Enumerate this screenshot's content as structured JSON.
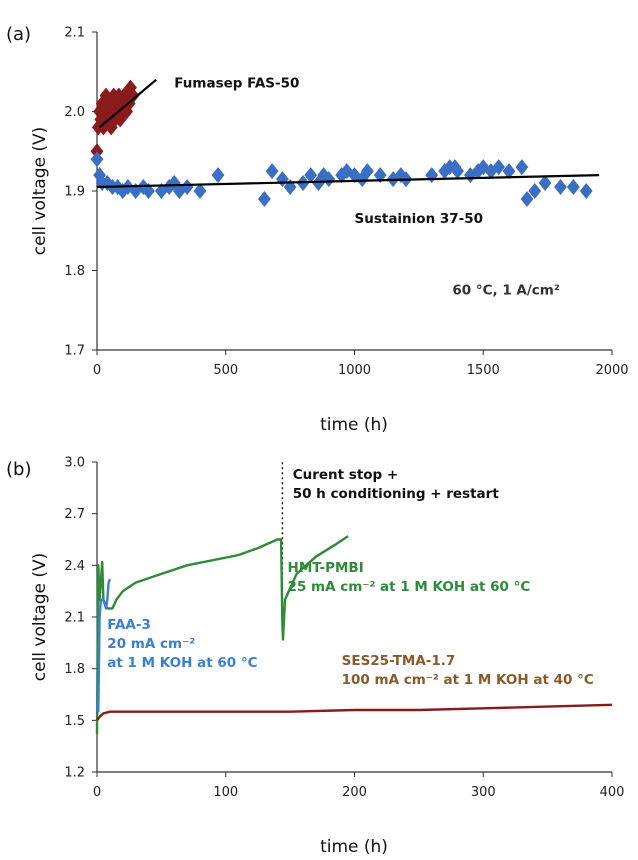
{
  "chart_data": [
    {
      "panel_label": "(a)",
      "type": "scatter",
      "xlabel": "time (h)",
      "ylabel": "cell voltage (V)",
      "xlim": [
        0,
        2000
      ],
      "ylim": [
        1.7,
        2.1
      ],
      "xticks": [
        0,
        500,
        1000,
        1500,
        2000
      ],
      "yticks": [
        1.7,
        1.8,
        1.9,
        2.0,
        2.1
      ],
      "grid": false,
      "colors": {
        "fumasep": "#8b1a1a",
        "sustainion": "#3a6fc4",
        "fit": "#000000"
      },
      "series": [
        {
          "name": "Fumasep FAS-50",
          "marker": "diamond",
          "points": [
            [
              0,
              1.95
            ],
            [
              5,
              1.98
            ],
            [
              10,
              2.0
            ],
            [
              15,
              1.99
            ],
            [
              20,
              2.01
            ],
            [
              25,
              1.98
            ],
            [
              30,
              2.0
            ],
            [
              35,
              2.02
            ],
            [
              40,
              1.99
            ],
            [
              45,
              2.0
            ],
            [
              50,
              2.01
            ],
            [
              55,
              1.98
            ],
            [
              60,
              2.0
            ],
            [
              65,
              2.02
            ],
            [
              70,
              1.99
            ],
            [
              75,
              2.01
            ],
            [
              80,
              2.0
            ],
            [
              85,
              2.02
            ],
            [
              90,
              1.99
            ],
            [
              95,
              2.01
            ],
            [
              100,
              2.0
            ],
            [
              105,
              2.02
            ],
            [
              110,
              2.01
            ],
            [
              115,
              2.0
            ],
            [
              120,
              2.02
            ],
            [
              125,
              2.01
            ],
            [
              130,
              2.03
            ],
            [
              140,
              2.02
            ]
          ],
          "trendline": [
            [
              10,
              1.98
            ],
            [
              230,
              2.04
            ]
          ]
        },
        {
          "name": "Sustainion 37-50",
          "marker": "diamond",
          "points": [
            [
              0,
              1.94
            ],
            [
              10,
              1.92
            ],
            [
              20,
              1.91
            ],
            [
              40,
              1.91
            ],
            [
              60,
              1.905
            ],
            [
              80,
              1.905
            ],
            [
              100,
              1.9
            ],
            [
              120,
              1.905
            ],
            [
              150,
              1.9
            ],
            [
              180,
              1.905
            ],
            [
              200,
              1.9
            ],
            [
              250,
              1.9
            ],
            [
              280,
              1.905
            ],
            [
              300,
              1.91
            ],
            [
              320,
              1.9
            ],
            [
              350,
              1.905
            ],
            [
              400,
              1.9
            ],
            [
              470,
              1.92
            ],
            [
              650,
              1.89
            ],
            [
              680,
              1.925
            ],
            [
              720,
              1.915
            ],
            [
              750,
              1.905
            ],
            [
              800,
              1.91
            ],
            [
              830,
              1.92
            ],
            [
              860,
              1.91
            ],
            [
              880,
              1.92
            ],
            [
              900,
              1.915
            ],
            [
              950,
              1.92
            ],
            [
              970,
              1.925
            ],
            [
              1000,
              1.92
            ],
            [
              1030,
              1.915
            ],
            [
              1050,
              1.925
            ],
            [
              1100,
              1.92
            ],
            [
              1150,
              1.915
            ],
            [
              1180,
              1.92
            ],
            [
              1200,
              1.915
            ],
            [
              1300,
              1.92
            ],
            [
              1350,
              1.925
            ],
            [
              1370,
              1.93
            ],
            [
              1390,
              1.93
            ],
            [
              1400,
              1.925
            ],
            [
              1450,
              1.92
            ],
            [
              1480,
              1.925
            ],
            [
              1500,
              1.93
            ],
            [
              1530,
              1.925
            ],
            [
              1560,
              1.93
            ],
            [
              1600,
              1.925
            ],
            [
              1650,
              1.93
            ],
            [
              1670,
              1.89
            ],
            [
              1700,
              1.9
            ],
            [
              1740,
              1.91
            ],
            [
              1800,
              1.905
            ],
            [
              1850,
              1.905
            ],
            [
              1900,
              1.9
            ]
          ],
          "trendline": [
            [
              0,
              1.905
            ],
            [
              1950,
              1.92
            ]
          ]
        }
      ],
      "annotations": [
        {
          "text": "Fumasep FAS-50",
          "x": 300,
          "y": 2.03,
          "color": "#111111"
        },
        {
          "text": "Sustainion 37-50",
          "x": 1000,
          "y": 1.86,
          "color": "#111111"
        },
        {
          "text": "60 °C, 1 A/cm²",
          "x": 1380,
          "y": 1.77,
          "color": "#333333"
        }
      ]
    },
    {
      "panel_label": "(b)",
      "type": "line",
      "xlabel": "time (h)",
      "ylabel": "cell voltage (V)",
      "xlim": [
        0,
        400
      ],
      "ylim": [
        1.2,
        3.0
      ],
      "xticks": [
        0,
        100,
        200,
        300,
        400
      ],
      "yticks": [
        1.2,
        1.5,
        1.8,
        2.1,
        2.4,
        2.7,
        3.0
      ],
      "grid": false,
      "colors": {
        "hmt": "#2e8b3a",
        "faa": "#3a7fd4",
        "ses": "#8b1a1a"
      },
      "series": [
        {
          "name": "HMT-PMBI",
          "points": [
            [
              0,
              1.42
            ],
            [
              1,
              2.4
            ],
            [
              2,
              2.2
            ],
            [
              4,
              2.42
            ],
            [
              5,
              2.2
            ],
            [
              8,
              2.15
            ],
            [
              12,
              2.15
            ],
            [
              15,
              2.2
            ],
            [
              20,
              2.25
            ],
            [
              30,
              2.3
            ],
            [
              50,
              2.35
            ],
            [
              70,
              2.4
            ],
            [
              90,
              2.43
            ],
            [
              110,
              2.46
            ],
            [
              125,
              2.5
            ],
            [
              140,
              2.55
            ],
            [
              143,
              2.55
            ],
            [
              144,
              2.05
            ],
            [
              144.5,
              1.97
            ],
            [
              146,
              2.2
            ],
            [
              155,
              2.35
            ],
            [
              170,
              2.45
            ],
            [
              185,
              2.52
            ],
            [
              195,
              2.57
            ]
          ]
        },
        {
          "name": "FAA-3",
          "points": [
            [
              0,
              1.6
            ],
            [
              1,
              1.55
            ],
            [
              2,
              2.1
            ],
            [
              3,
              2.2
            ],
            [
              5,
              2.2
            ],
            [
              7,
              2.15
            ],
            [
              8,
              2.2
            ],
            [
              9,
              2.3
            ],
            [
              10,
              2.32
            ]
          ]
        },
        {
          "name": "SES25-TMA-1.7",
          "points": [
            [
              0,
              1.5
            ],
            [
              2,
              1.52
            ],
            [
              5,
              1.54
            ],
            [
              10,
              1.55
            ],
            [
              50,
              1.55
            ],
            [
              100,
              1.55
            ],
            [
              150,
              1.55
            ],
            [
              200,
              1.56
            ],
            [
              250,
              1.56
            ],
            [
              300,
              1.57
            ],
            [
              350,
              1.58
            ],
            [
              400,
              1.59
            ]
          ]
        }
      ],
      "event_line": {
        "x": 144,
        "y_from": 2.0,
        "y_to": 3.0
      },
      "annotations": [
        {
          "lines": [
            "Curent stop +",
            "50 h conditioning + restart"
          ],
          "x": 152,
          "y": 2.9,
          "color": "#111111"
        },
        {
          "lines": [
            "HMT-PMBI",
            "25 mA cm⁻² at 1 M KOH at 60 °C"
          ],
          "x": 148,
          "y": 2.36,
          "color": "#2e8b3a"
        },
        {
          "lines": [
            "FAA-3",
            "20 mA cm⁻²",
            "at 1 M KOH at 60 °C"
          ],
          "x": 8,
          "y": 2.03,
          "color": "#3a7fd4"
        },
        {
          "lines": [
            "SES25-TMA-1.7",
            "100 mA cm⁻² at 1 M KOH at 40 °C"
          ],
          "x": 190,
          "y": 1.82,
          "color": "#8b5a2b"
        }
      ]
    }
  ]
}
